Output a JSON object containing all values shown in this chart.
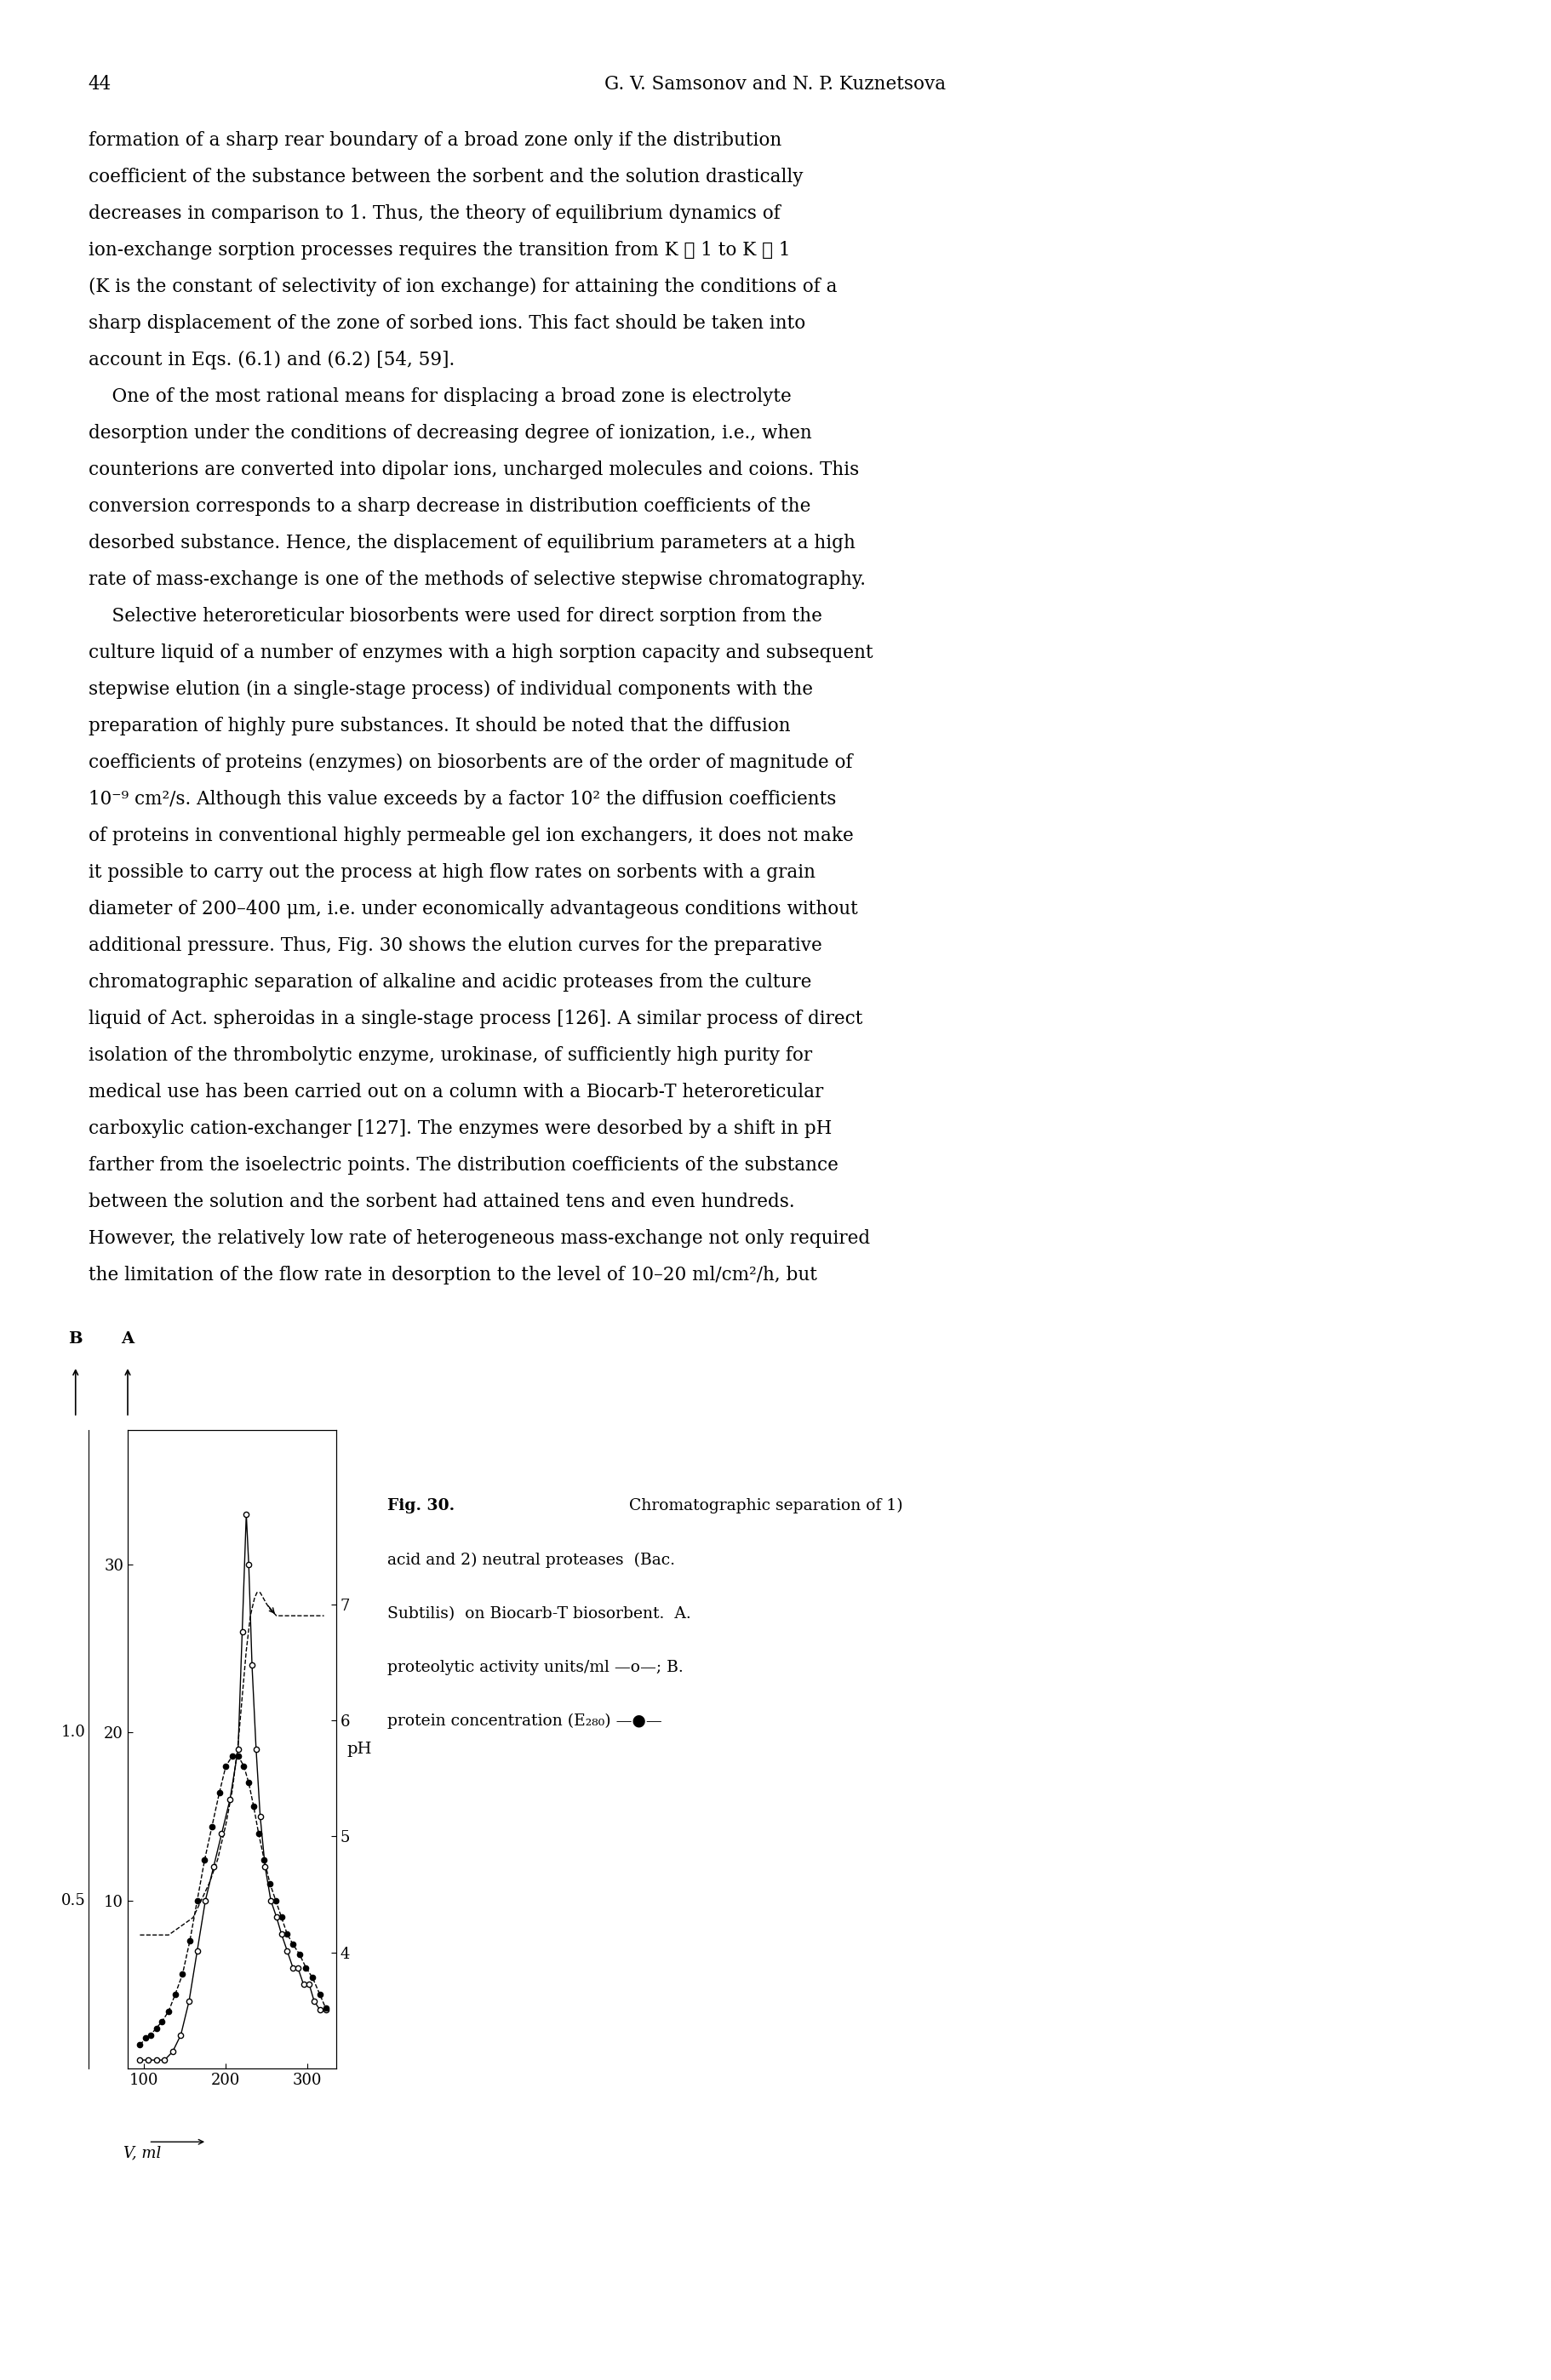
{
  "page_number": "44",
  "header_right": "G. V. Samsonov and N. P. Kuznetsova",
  "body_lines": [
    "formation of a sharp rear boundary of a broad zone only if the distribution",
    "coefficient of the substance between the sorbent and the solution drastically",
    "decreases in comparison to 1. Thus, the theory of equilibrium dynamics of",
    "ion-exchange sorption processes requires the transition from K ≫ 1 to K ≪ 1",
    "(K is the constant of selectivity of ion exchange) for attaining the conditions of a",
    "sharp displacement of the zone of sorbed ions. This fact should be taken into",
    "account in Eqs. (6.1) and (6.2) [54, 59].",
    "    One of the most rational means for displacing a broad zone is electrolyte",
    "desorption under the conditions of decreasing degree of ionization, i.e., when",
    "counterions are converted into dipolar ions, uncharged molecules and coions. This",
    "conversion corresponds to a sharp decrease in distribution coefficients of the",
    "desorbed substance. Hence, the displacement of equilibrium parameters at a high",
    "rate of mass-exchange is one of the methods of selective stepwise chromatography.",
    "    Selective heteroreticular biosorbents were used for direct sorption from the",
    "culture liquid of a number of enzymes with a high sorption capacity and subsequent",
    "stepwise elution (in a single-stage process) of individual components with the",
    "preparation of highly pure substances. It should be noted that the diffusion",
    "coefficients of proteins (enzymes) on biosorbents are of the order of magnitude of",
    "10⁻⁹ cm²/s. Although this value exceeds by a factor 10² the diffusion coefficients",
    "of proteins in conventional highly permeable gel ion exchangers, it does not make",
    "it possible to carry out the process at high flow rates on sorbents with a grain",
    "diameter of 200–400 μm, i.e. under economically advantageous conditions without",
    "additional pressure. Thus, Fig. 30 shows the elution curves for the preparative",
    "chromatographic separation of alkaline and acidic proteases from the culture",
    "liquid of Act. spheroidas in a single-stage process [126]. A similar process of direct",
    "isolation of the thrombolytic enzyme, urokinase, of sufficiently high purity for",
    "medical use has been carried out on a column with a Biocarb-T heteroreticular",
    "carboxylic cation-exchanger [127]. The enzymes were desorbed by a shift in pH",
    "farther from the isoelectric points. The distribution coefficients of the substance",
    "between the solution and the sorbent had attained tens and even hundreds.",
    "However, the relatively low rate of heterogeneous mass-exchange not only required",
    "the limitation of the flow rate in desorption to the level of 10–20 ml/cm²/h, but"
  ],
  "caption_lines": [
    "Fig. 30. Chromatographic separation of 1)",
    "acid and 2) neutral proteases  (Bac.",
    "Subtilis)  on Biocarb-T biosorbent.  A.",
    "proteolytic activity units/ml —o—; B.",
    "protein concentration (E₂₈₀) —●—"
  ],
  "x_open": [
    95,
    105,
    115,
    125,
    135,
    145,
    155,
    165,
    175,
    185,
    195,
    205,
    215,
    220,
    225,
    228,
    232,
    237,
    242,
    248,
    255,
    262,
    268,
    275,
    282,
    288,
    295,
    302,
    308,
    315,
    322
  ],
  "y_open": [
    0.5,
    0.5,
    0.5,
    0.5,
    1,
    2,
    4,
    7,
    10,
    12,
    14,
    16,
    19,
    26,
    33,
    30,
    24,
    19,
    15,
    12,
    10,
    9,
    8,
    7,
    6,
    6,
    5,
    5,
    4,
    3.5,
    3.5
  ],
  "x_filled": [
    95,
    102,
    108,
    115,
    122,
    130,
    138,
    147,
    156,
    165,
    174,
    183,
    192,
    200,
    208,
    215,
    222,
    228,
    234,
    240,
    247,
    254,
    261,
    268,
    275,
    282,
    290,
    298,
    306,
    315,
    322
  ],
  "y_filled": [
    0.07,
    0.09,
    0.1,
    0.12,
    0.14,
    0.17,
    0.22,
    0.28,
    0.38,
    0.5,
    0.62,
    0.72,
    0.82,
    0.9,
    0.93,
    0.93,
    0.9,
    0.85,
    0.78,
    0.7,
    0.62,
    0.55,
    0.5,
    0.45,
    0.4,
    0.37,
    0.34,
    0.3,
    0.27,
    0.22,
    0.18
  ],
  "x_pH": [
    95,
    100,
    110,
    120,
    130,
    140,
    150,
    160,
    170,
    180,
    190,
    200,
    208,
    215,
    220,
    225,
    230,
    235,
    238,
    242,
    246,
    250,
    255,
    262,
    270,
    280,
    292,
    305,
    320
  ],
  "y_pH": [
    4.15,
    4.15,
    4.15,
    4.15,
    4.15,
    4.2,
    4.25,
    4.3,
    4.45,
    4.6,
    4.8,
    5.1,
    5.4,
    5.8,
    6.2,
    6.6,
    6.9,
    7.05,
    7.1,
    7.1,
    7.05,
    7.0,
    6.95,
    6.9,
    6.9,
    6.9,
    6.9,
    6.9,
    6.9
  ],
  "A_ticks": [
    10,
    20,
    30
  ],
  "A_range": [
    0,
    38
  ],
  "B_ticks": [
    0.5,
    1.0
  ],
  "B_range": [
    0,
    1.9
  ],
  "pH_ticks": [
    4,
    5,
    6,
    7
  ],
  "pH_range": [
    3.0,
    8.5
  ],
  "x_range": [
    80,
    335
  ],
  "x_ticks": [
    100,
    200,
    300
  ],
  "font_size_body": 15.5,
  "font_size_header": 15.5,
  "font_size_caption": 13.5,
  "font_size_axis": 13
}
